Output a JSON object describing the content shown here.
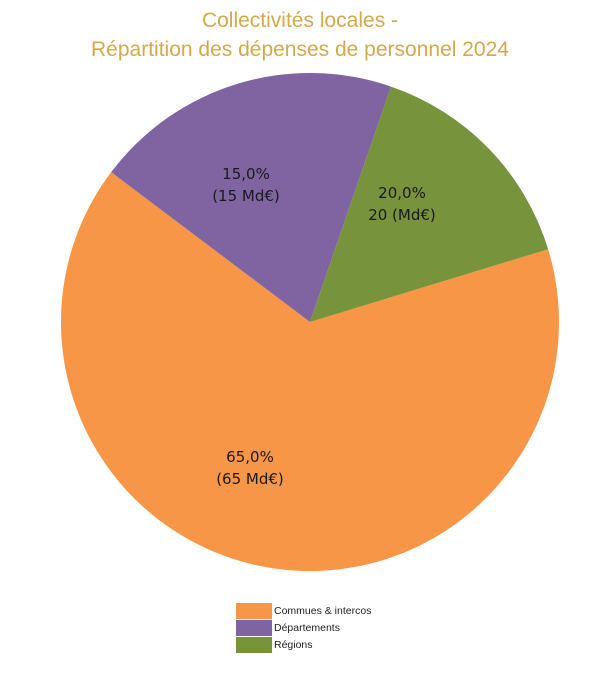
{
  "title": {
    "line1": "Collectivités locales -",
    "line2": "Répartition des dépenses de personnel 2024",
    "color": "#D4A94B"
  },
  "chart_data": {
    "type": "pie",
    "title": "Collectivités locales - Répartition des dépenses de personnel 2024",
    "categories": [
      "Commues & intercos",
      "Départements",
      "Régions"
    ],
    "values": [
      65,
      20,
      15
    ],
    "percentages": [
      65.0,
      20.0,
      15.0
    ],
    "unit": "Md€",
    "colors": [
      "#F79646",
      "#8064A2",
      "#77933C"
    ],
    "data_labels": [
      {
        "pct": "65,0%",
        "value": "(65 Md€)"
      },
      {
        "pct": "20,0%",
        "value": "20 (Md€)"
      },
      {
        "pct": "15,0%",
        "value": "(15 Md€)"
      }
    ],
    "legend_position": "bottom"
  },
  "legend": {
    "items": [
      {
        "label": "Commues & intercos",
        "color": "#F79646"
      },
      {
        "label": "Départements",
        "color": "#8064A2"
      },
      {
        "label": "Régions",
        "color": "#77933C"
      }
    ]
  }
}
